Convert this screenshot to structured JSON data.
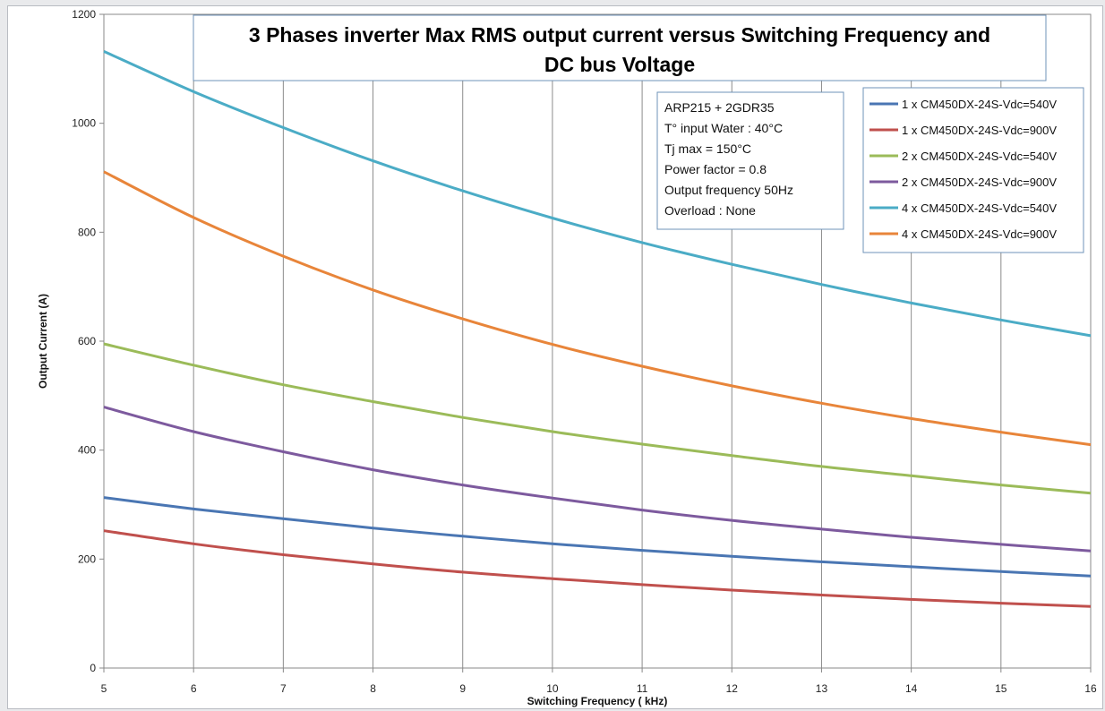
{
  "chart_data": {
    "type": "line",
    "title_lines": [
      "3 Phases inverter Max RMS output current versus Switching Frequency and",
      "DC bus Voltage"
    ],
    "xlabel": "Switching Frequency ( kHz)",
    "ylabel": "Output Current (A)",
    "xlim": [
      5,
      16
    ],
    "ylim": [
      0,
      1200
    ],
    "x_ticks": [
      5,
      6,
      7,
      8,
      9,
      10,
      11,
      12,
      13,
      14,
      15,
      16
    ],
    "y_ticks": [
      0,
      200,
      400,
      600,
      800,
      1000,
      1200
    ],
    "grid": "vertical",
    "legend_position": "top-right",
    "info_box": [
      "ARP215 + 2GDR35",
      "T° input Water : 40°C",
      "Tj max = 150°C",
      "Power factor = 0.8",
      "Output frequency 50Hz",
      "Overload : None"
    ],
    "x": [
      5,
      6,
      7,
      8,
      9,
      10,
      11,
      12,
      13,
      14,
      15,
      16
    ],
    "series": [
      {
        "name": "1 x CM450DX-24S-Vdc=540V",
        "color": "#4a76b3",
        "values": [
          313,
          292,
          274,
          257,
          242,
          228,
          216,
          205,
          195,
          186,
          177,
          169
        ]
      },
      {
        "name": "1 x CM450DX-24S-Vdc=900V",
        "color": "#c0504d",
        "values": [
          252,
          228,
          208,
          191,
          176,
          164,
          153,
          143,
          134,
          126,
          119,
          113
        ]
      },
      {
        "name": "2 x CM450DX-24S-Vdc=540V",
        "color": "#9bbb59",
        "values": [
          595,
          556,
          520,
          489,
          460,
          434,
          411,
          390,
          370,
          353,
          336,
          321
        ]
      },
      {
        "name": "2 x CM450DX-24S-Vdc=900V",
        "color": "#7d5a9e",
        "values": [
          479,
          434,
          397,
          364,
          336,
          312,
          290,
          271,
          255,
          240,
          227,
          215
        ]
      },
      {
        "name": "4 x CM450DX-24S-Vdc=540V",
        "color": "#4bacc6",
        "values": [
          1132,
          1058,
          992,
          931,
          876,
          826,
          781,
          741,
          704,
          670,
          639,
          610
        ]
      },
      {
        "name": "4 x CM450DX-24S-Vdc=900V",
        "color": "#e8853a",
        "values": [
          911,
          827,
          756,
          694,
          641,
          594,
          554,
          518,
          486,
          458,
          433,
          410
        ]
      }
    ]
  }
}
